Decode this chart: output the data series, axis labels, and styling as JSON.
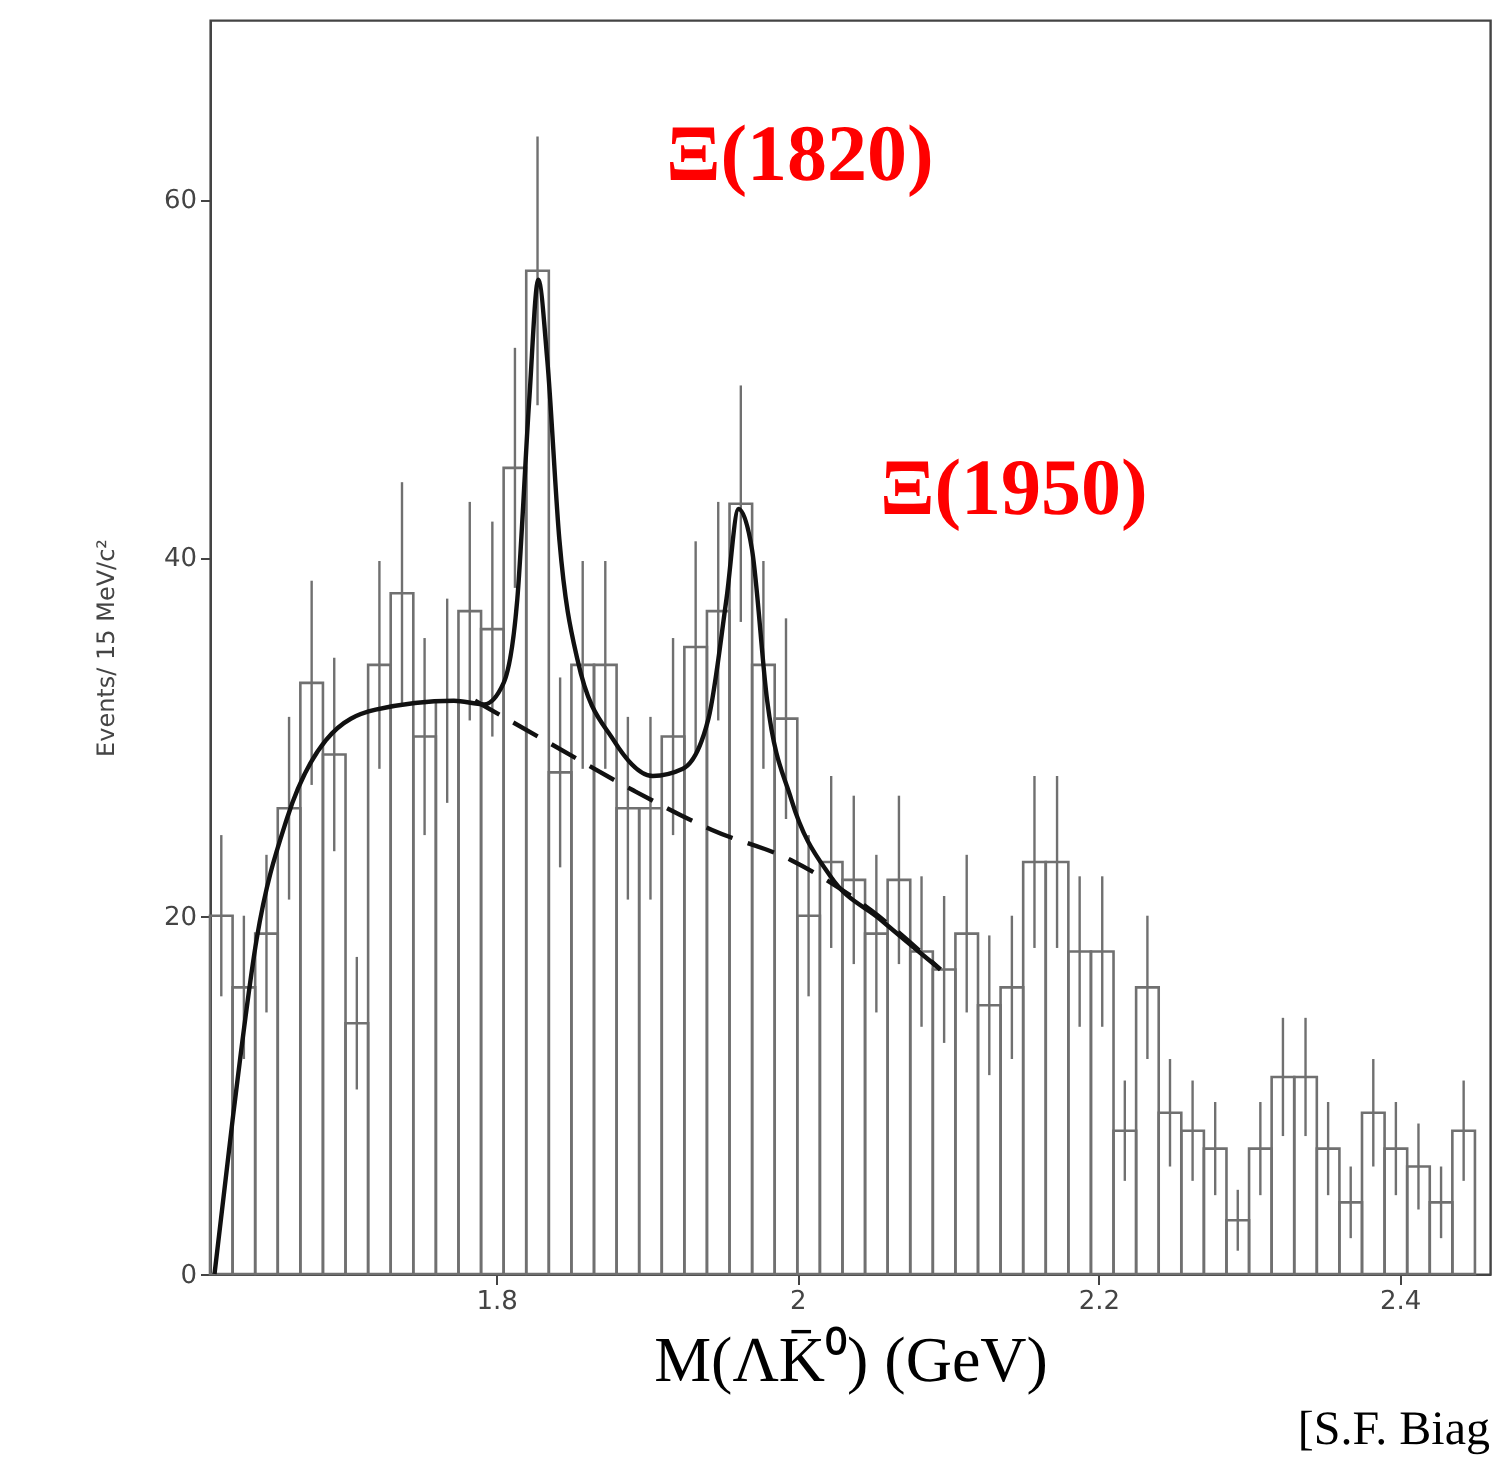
{
  "chart_data": {
    "type": "histogram",
    "xlabel": "M(ΛK̄⁰) (GeV)",
    "ylabel": "Events/ 15 MeV/c²",
    "bins": [
      1.61,
      1.625,
      1.64,
      1.655,
      1.67,
      1.685,
      1.7,
      1.715,
      1.73,
      1.745,
      1.76,
      1.775,
      1.79,
      1.805,
      1.82,
      1.835,
      1.85,
      1.865,
      1.88,
      1.895,
      1.91,
      1.925,
      1.94,
      1.955,
      1.97,
      1.985,
      2.0,
      2.015,
      2.03,
      2.045,
      2.06,
      2.075,
      2.09,
      2.105,
      2.12,
      2.135,
      2.15,
      2.165,
      2.18,
      2.195,
      2.21,
      2.225,
      2.24,
      2.255,
      2.27,
      2.285,
      2.3,
      2.315,
      2.33,
      2.345,
      2.36,
      2.375,
      2.39,
      2.405,
      2.42,
      2.435,
      2.45
    ],
    "values": [
      20,
      16,
      19,
      26,
      33,
      29,
      14,
      34,
      38,
      30,
      32,
      37,
      36,
      45,
      56,
      28,
      34,
      34,
      26,
      26,
      30,
      35,
      37,
      43,
      34,
      31,
      20,
      23,
      22,
      19,
      22,
      18,
      17,
      19,
      15,
      16,
      23,
      23,
      18,
      18,
      8,
      16,
      9,
      8,
      7,
      3,
      7,
      11,
      11,
      7,
      4,
      9,
      7,
      6,
      4,
      8
    ],
    "errors": [
      4.5,
      4,
      4.4,
      5.1,
      5.7,
      5.4,
      3.7,
      5.8,
      6.2,
      5.5,
      5.7,
      6.1,
      6,
      6.7,
      7.5,
      5.3,
      5.8,
      5.8,
      5.1,
      5.1,
      5.5,
      5.9,
      6.1,
      6.6,
      5.8,
      5.6,
      4.5,
      4.8,
      4.7,
      4.4,
      4.7,
      4.2,
      4.1,
      4.4,
      3.9,
      4,
      4.8,
      4.8,
      4.2,
      4.2,
      2.8,
      4,
      3,
      2.8,
      2.6,
      1.7,
      2.6,
      3.3,
      3.3,
      2.6,
      2,
      3,
      2.6,
      2.4,
      2,
      2.8
    ],
    "color": "#707070",
    "series": [
      {
        "type": "line",
        "color": "#111111",
        "line_style": "solid",
        "x": [
          1.613,
          1.625,
          1.641,
          1.661,
          1.687,
          1.72,
          1.772,
          1.792,
          1.805,
          1.814,
          1.822,
          1.828,
          1.834,
          1.842,
          1.854,
          1.878,
          1.904,
          1.924,
          1.941,
          1.953,
          1.961,
          1.97,
          1.98,
          1.996,
          2.022,
          2.055,
          2.095
        ],
        "values": [
          0,
          8.6,
          18.7,
          25.4,
          29.8,
          31.5,
          32,
          31.8,
          33,
          37.6,
          48.8,
          55.5,
          51,
          41,
          34.3,
          29.8,
          27.8,
          28.2,
          31,
          37.7,
          42.7,
          40.4,
          32,
          26.5,
          22.2,
          19.8,
          17
        ]
      },
      {
        "type": "line",
        "color": "#111111",
        "line_style": "dashed",
        "x": [
          1.786,
          1.832,
          1.891,
          1.943,
          1.996,
          2.049,
          2.095
        ],
        "values": [
          32,
          29.8,
          27,
          24.8,
          23.1,
          20.3,
          17
        ]
      }
    ],
    "xlim": [
      1.61,
      2.46
    ],
    "ylim": [
      0,
      70
    ],
    "xticks": [
      1.8,
      2,
      2.2,
      2.4
    ],
    "yticks": [
      0,
      20,
      40,
      60
    ],
    "grid": false,
    "annotations": [
      "Ξ(1820)",
      "Ξ(1950)",
      "[S.F. Biag"
    ]
  }
}
